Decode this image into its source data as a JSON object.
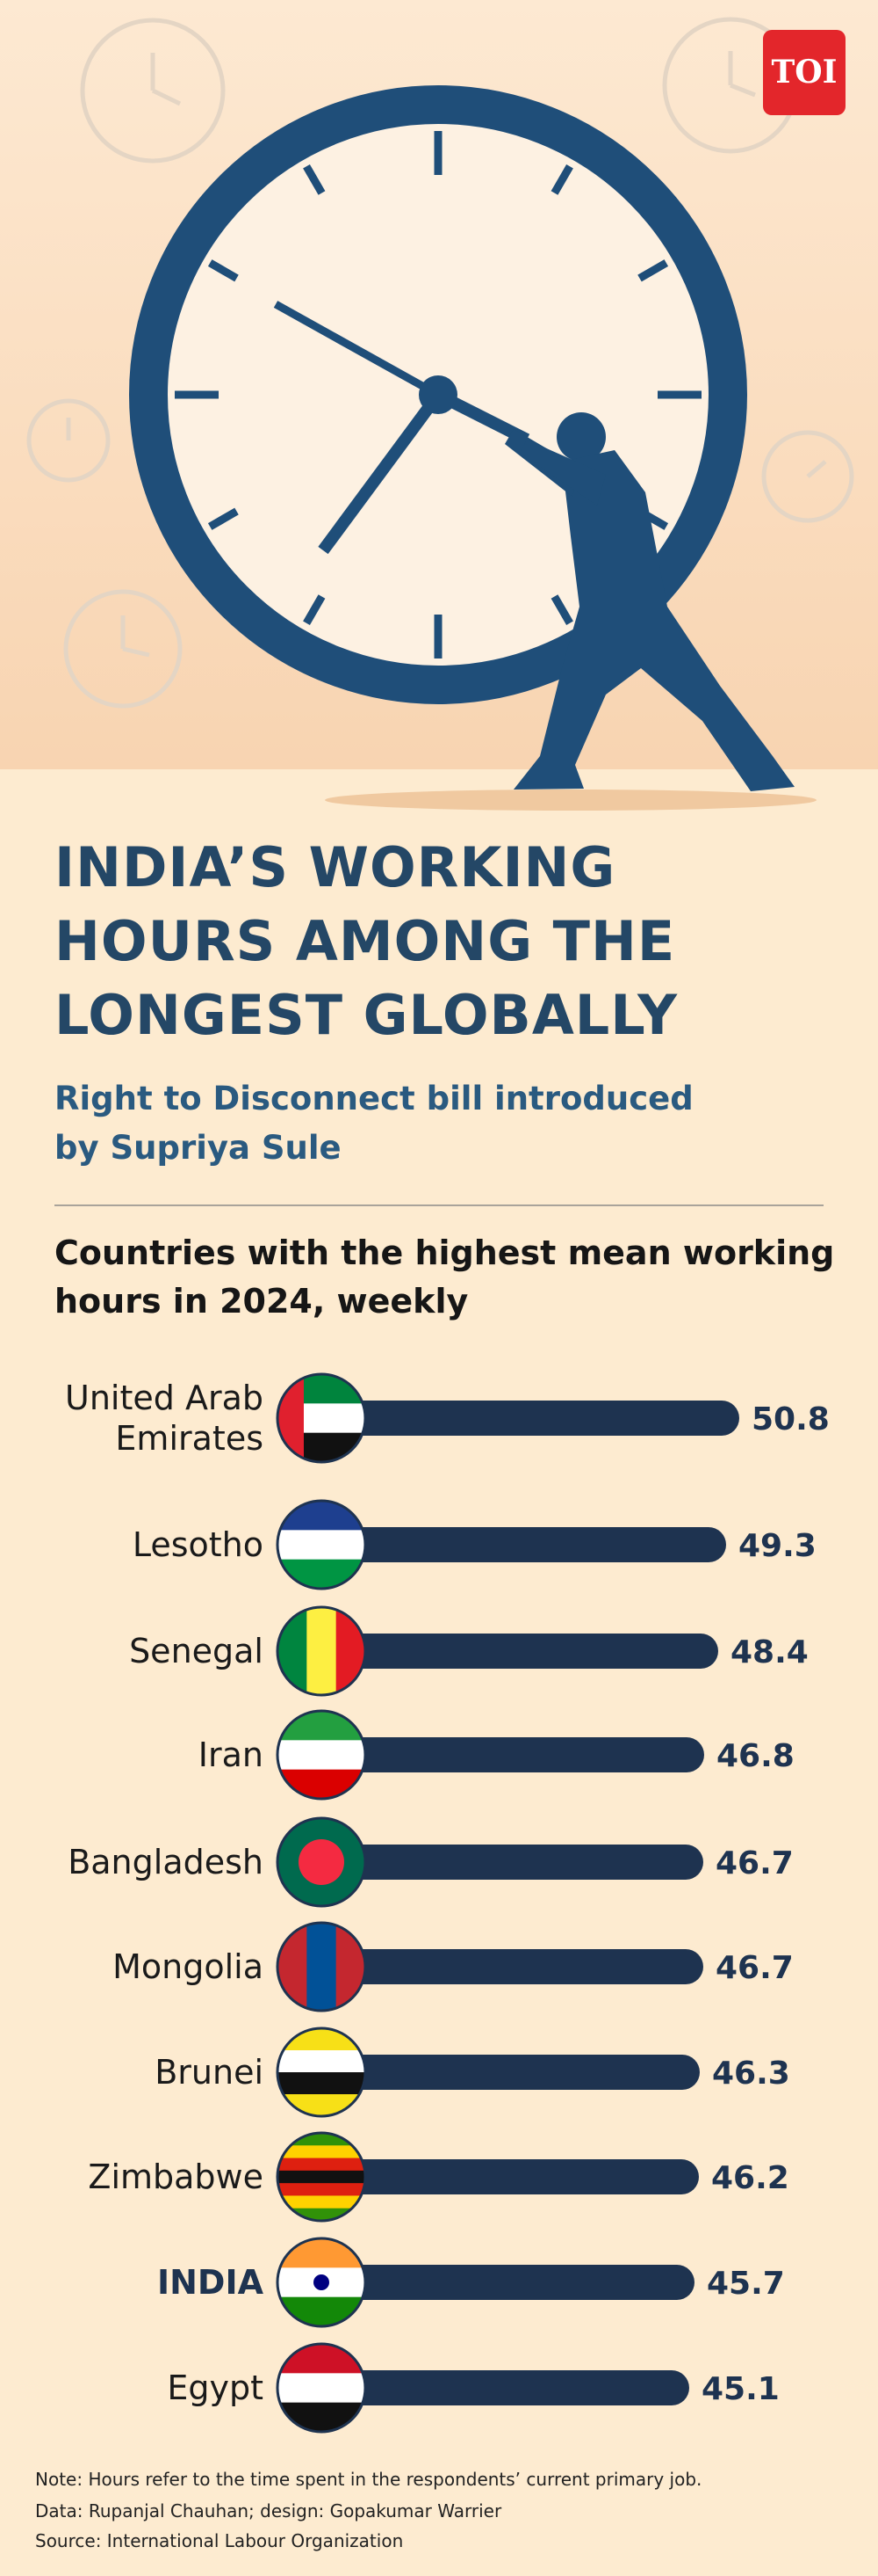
{
  "logo": "TOI",
  "chart_data": {
    "type": "bar",
    "orientation": "horizontal",
    "title": "INDIA’S WORKING HOURS AMONG THE LONGEST GLOBALLY",
    "subtitle": "Right to Disconnect bill introduced by Supriya Sule",
    "chart_title": "Countries with the highest mean working hours in 2024, weekly",
    "categories": [
      "United Arab Emirates",
      "Lesotho",
      "Senegal",
      "Iran",
      "Bangladesh",
      "Mongolia",
      "Brunei",
      "Zimbabwe",
      "INDIA",
      "Egypt"
    ],
    "values": [
      50.8,
      49.3,
      48.4,
      46.8,
      46.7,
      46.7,
      46.3,
      46.2,
      45.7,
      45.1
    ],
    "color": "#1e3350",
    "notes": [
      "Note: Hours refer to the time spent in the respondents’ current primary job.",
      "Data: Rupanjal Chauhan; design: Gopakumar Warrier",
      "Source: International Labour Organization"
    ]
  }
}
